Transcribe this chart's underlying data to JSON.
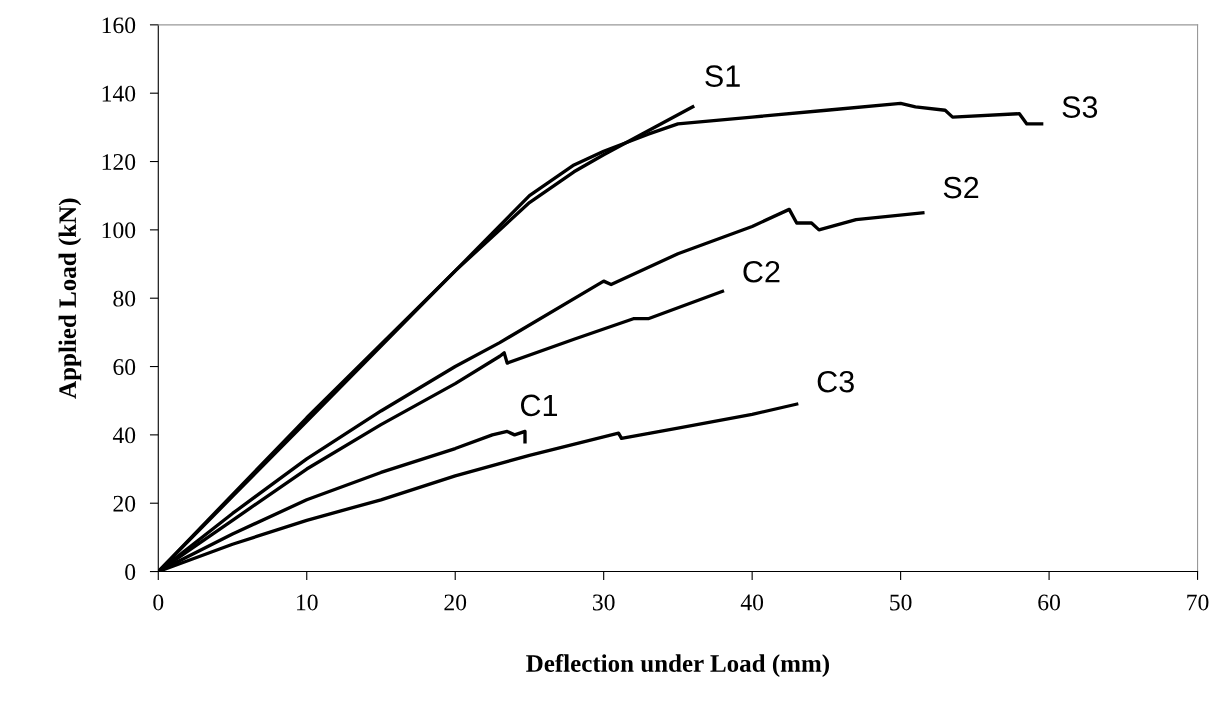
{
  "chart_data": {
    "type": "line",
    "xlabel": "Deflection under Load (mm)",
    "ylabel": "Applied Load (kN)",
    "xlim": [
      0,
      70
    ],
    "xticks": [
      0,
      10,
      20,
      30,
      40,
      50,
      60,
      70
    ],
    "ylim": [
      0,
      160
    ],
    "yticks": [
      0,
      20,
      40,
      60,
      80,
      100,
      120,
      140,
      160
    ],
    "grid": false,
    "legend": false,
    "marker": "none",
    "line_style": "solid",
    "series": [
      {
        "name": "S1",
        "color": "#000000",
        "x": [
          0,
          5,
          10,
          15,
          20,
          25,
          28,
          30,
          33,
          36
        ],
        "values": [
          0,
          22,
          44,
          66,
          88,
          108,
          117,
          122,
          129,
          136
        ]
      },
      {
        "name": "S3",
        "color": "#000000",
        "x": [
          0,
          10,
          20,
          25,
          28,
          30,
          33,
          35,
          40,
          45,
          50,
          51,
          53,
          53.5,
          58,
          58.5,
          59.5
        ],
        "values": [
          0,
          45,
          88,
          110,
          119,
          123,
          128,
          131,
          133,
          135,
          137,
          136,
          135,
          133,
          134,
          131,
          131
        ]
      },
      {
        "name": "S2",
        "color": "#000000",
        "x": [
          0,
          5,
          10,
          15,
          20,
          23,
          30,
          30.5,
          35,
          40,
          42.5,
          43,
          44,
          44.5,
          47,
          51.5
        ],
        "values": [
          0,
          17,
          33,
          47,
          60,
          67,
          85,
          84,
          93,
          101,
          106,
          102,
          102,
          100,
          103,
          105
        ]
      },
      {
        "name": "C2",
        "color": "#000000",
        "x": [
          0,
          5,
          10,
          15,
          20,
          23,
          23.3,
          23.5,
          28,
          32,
          33,
          38
        ],
        "values": [
          0,
          15,
          30,
          43,
          55,
          63,
          64,
          61,
          68,
          74,
          74,
          82
        ]
      },
      {
        "name": "C1",
        "color": "#000000",
        "x": [
          0,
          5,
          10,
          15,
          20,
          22.5,
          23.5,
          24,
          24.7,
          24.7
        ],
        "values": [
          0,
          11,
          21,
          29,
          36,
          40,
          41,
          40,
          41,
          38
        ]
      },
      {
        "name": "C3",
        "color": "#000000",
        "x": [
          0,
          5,
          10,
          15,
          20,
          25,
          31,
          31.2,
          35,
          40,
          43
        ],
        "values": [
          0,
          8,
          15,
          21,
          28,
          34,
          40.5,
          39,
          42,
          46,
          49
        ]
      }
    ]
  }
}
